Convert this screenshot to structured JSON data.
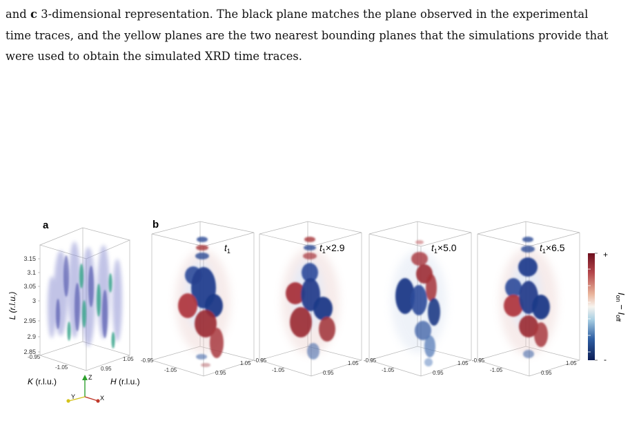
{
  "caption": {
    "line1_pre": "and ",
    "line1_bold": "c",
    "line1_post": " 3-dimensional representation. The black plane matches the plane observed in the experimental",
    "line2": "time traces, and the yellow planes are the two nearest bounding planes that the simulations provide that",
    "line3": "were used to obtain the simulated XRD time traces."
  },
  "panel_a": {
    "label": "a",
    "ylabel": "L (r.l.u.)",
    "yticks": [
      "3.15",
      "3.1",
      "3.05",
      "3",
      "2.95",
      "2.9",
      "2.85"
    ],
    "k_ticks": [
      "-0.95",
      "-1.05"
    ],
    "h_ticks": [
      "0.95",
      "1.05"
    ],
    "klabel": "K (r.l.u.)",
    "hlabel": "H (r.l.u.)",
    "axes": {
      "z": "Z",
      "y": "Y",
      "x": "X"
    },
    "colors": {
      "z": "#2ca02c",
      "y": "#d4c21a",
      "x": "#c0392b"
    }
  },
  "panel_b": {
    "label": "b",
    "time_labels": [
      {
        "base": "t",
        "sub": "1",
        "suffix": ""
      },
      {
        "base": "t",
        "sub": "1",
        "suffix": "×2.9"
      },
      {
        "base": "t",
        "sub": "1",
        "suffix": "×5.0"
      },
      {
        "base": "t",
        "sub": "1",
        "suffix": "×6.5"
      }
    ],
    "k_ticks": [
      "-0.95",
      "-1.05"
    ],
    "h_ticks": [
      "0.95",
      "1.05"
    ]
  },
  "colorbar": {
    "plus": "+",
    "minus": "-",
    "label_I": "I",
    "label_on": "on",
    "label_dash": " − ",
    "label_off": "off",
    "colors": [
      "#0b1d55",
      "#2f5fa3",
      "#a9cfe3",
      "#f7f4ef",
      "#e9b39a",
      "#b3454a",
      "#6e0f1e"
    ]
  },
  "colors": {
    "blue_dark": "#1e3b8a",
    "red_dark": "#9b2a30",
    "teal": "#3aa58c",
    "lavender": "#8f93d3"
  }
}
